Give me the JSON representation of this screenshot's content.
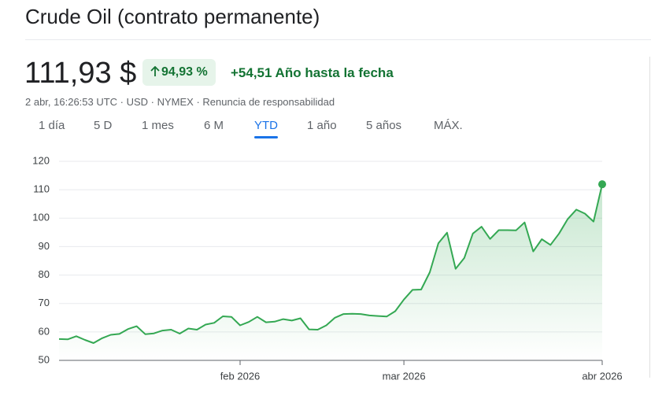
{
  "header": {
    "title": "Crude Oil (contrato permanente)",
    "price": "111,93 $",
    "change_percent": "94,93 %",
    "change": "+54,51 Año hasta la fecha",
    "subtitle": "2 abr, 16:26:53 UTC · USD · NYMEX · Renuncia de responsabilidad"
  },
  "tabs": {
    "items": [
      "1 día",
      "5 D",
      "1 mes",
      "6 M",
      "YTD",
      "1 año",
      "5 años",
      "MÁX."
    ],
    "selected": "YTD"
  },
  "chart_data": {
    "type": "line",
    "x": [
      0,
      1,
      2,
      3,
      4,
      5,
      6,
      7,
      8,
      9,
      10,
      11,
      12,
      13,
      14,
      15,
      16,
      17,
      18,
      19,
      20,
      21,
      22,
      23,
      24,
      25,
      26,
      27,
      28,
      29,
      30,
      31,
      32,
      33,
      34,
      35,
      36,
      37,
      38,
      39,
      40,
      41,
      42,
      43,
      44,
      45,
      46,
      47,
      48,
      49,
      50,
      51,
      52,
      53,
      54,
      55,
      56,
      57,
      58,
      59,
      60,
      61,
      62,
      63
    ],
    "series": [
      {
        "color": "#34a853",
        "values": [
          57.5,
          57.4,
          58.5,
          57.2,
          56.1,
          57.8,
          59.0,
          59.3,
          61.0,
          62.0,
          59.2,
          59.5,
          60.5,
          60.8,
          59.4,
          61.2,
          60.8,
          62.6,
          63.2,
          65.5,
          65.3,
          62.3,
          63.5,
          65.3,
          63.4,
          63.6,
          64.5,
          64.0,
          64.8,
          60.9,
          60.8,
          62.3,
          65.0,
          66.3,
          66.4,
          66.3,
          65.8,
          65.6,
          65.4,
          67.3,
          71.4,
          74.8,
          74.9,
          81.0,
          91.2,
          94.9,
          82.2,
          86.0,
          94.6,
          97.0,
          92.7,
          95.8,
          95.8,
          95.7,
          98.5,
          88.3,
          92.6,
          90.6,
          94.6,
          99.7,
          103.0,
          101.6,
          98.8,
          111.93
        ]
      }
    ],
    "xlim": [
      0,
      63
    ],
    "xticks": [
      {
        "value": 21,
        "label": "feb 2026"
      },
      {
        "value": 40,
        "label": "mar 2026"
      },
      {
        "value": 63,
        "label": "abr 2026"
      }
    ],
    "ylim": [
      50,
      120
    ],
    "yticks": [
      50,
      60,
      70,
      80,
      90,
      100,
      110,
      120
    ],
    "grid": true
  }
}
